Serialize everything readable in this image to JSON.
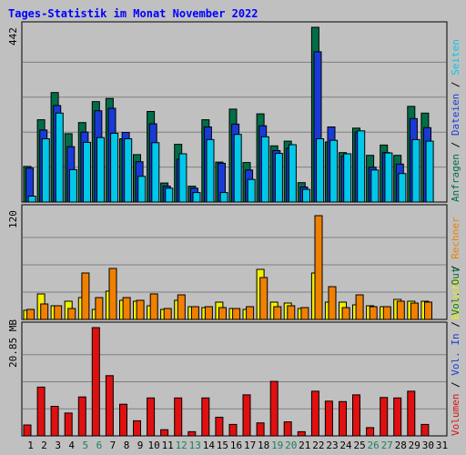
{
  "chart_data": [
    {
      "type": "bar",
      "title": "Tages-Statistik im Monat November 2022",
      "panel": "hits",
      "ylabel_max": "442",
      "ymax": 442,
      "legend": [
        {
          "label": "Anfragen",
          "color": "#006e46"
        },
        {
          "label": "Dateien",
          "color": "#1a3ad8"
        },
        {
          "label": "Seiten",
          "color": "#00c8e8"
        }
      ],
      "series": [
        {
          "name": "Anfragen",
          "values": [
            90,
            208,
            277,
            173,
            201,
            254,
            262,
            160,
            120,
            229,
            48,
            146,
            40,
            208,
            101,
            235,
            100,
            223,
            142,
            154,
            49,
            442,
            152,
            125,
            187,
            118,
            144,
            118,
            242,
            225
          ]
        },
        {
          "name": "Dateien",
          "values": [
            86,
            182,
            244,
            140,
            177,
            231,
            237,
            176,
            102,
            198,
            40,
            108,
            35,
            190,
            98,
            197,
            81,
            193,
            130,
            136,
            38,
            380,
            190,
            116,
            177,
            88,
            125,
            96,
            211,
            188
          ]
        },
        {
          "name": "Seiten",
          "values": [
            15,
            160,
            225,
            82,
            151,
            163,
            174,
            160,
            65,
            150,
            35,
            122,
            24,
            158,
            24,
            171,
            57,
            165,
            123,
            145,
            32,
            160,
            156,
            122,
            180,
            81,
            124,
            72,
            158,
            154
          ]
        }
      ]
    },
    {
      "type": "bar",
      "panel": "visits",
      "ylabel_max": "120",
      "ymax": 120,
      "legend": [
        {
          "label": "Besuche",
          "color": "#f0f000"
        },
        {
          "label": "Rechner",
          "color": "#f08000"
        }
      ],
      "series": [
        {
          "name": "Besuche",
          "values": [
            10,
            28,
            15,
            20,
            24,
            11,
            31,
            21,
            20,
            15,
            11,
            21,
            14,
            13,
            19,
            12,
            11,
            55,
            19,
            18,
            12,
            51,
            19,
            19,
            16,
            15,
            14,
            22,
            20,
            20
          ]
        },
        {
          "name": "Rechner",
          "values": [
            11,
            17,
            15,
            12,
            51,
            24,
            56,
            24,
            21,
            28,
            12,
            27,
            14,
            14,
            13,
            12,
            14,
            46,
            14,
            15,
            13,
            114,
            36,
            13,
            27,
            14,
            14,
            20,
            18,
            19
          ]
        }
      ]
    },
    {
      "type": "bar",
      "panel": "volume",
      "ylabel_max": "20.85 MB",
      "ymax": 20.85,
      "legend": [
        {
          "label": "Volumen",
          "color": "#e01010"
        },
        {
          "label": "Vol. In",
          "color": "#1a3ad8"
        },
        {
          "label": "Vol. Out",
          "color": "#006e46"
        }
      ],
      "series": [
        {
          "name": "Volumen",
          "values": [
            2.1,
            9.4,
            5.7,
            4.4,
            7.5,
            20.85,
            11.6,
            6.1,
            2.9,
            7.3,
            1.2,
            7.3,
            0.8,
            7.3,
            3.6,
            2.2,
            7.9,
            2.5,
            10.5,
            2.7,
            0.8,
            8.6,
            6.7,
            6.6,
            7.9,
            1.6,
            7.4,
            7.3,
            8.6,
            2.2
          ]
        }
      ]
    }
  ],
  "x_labels": [
    "1",
    "2",
    "3",
    "4",
    "5",
    "6",
    "7",
    "8",
    "9",
    "10",
    "11",
    "12",
    "13",
    "14",
    "15",
    "16",
    "17",
    "18",
    "19",
    "20",
    "21",
    "22",
    "23",
    "24",
    "25",
    "26",
    "27",
    "28",
    "29",
    "30",
    "31"
  ],
  "weekend_days": [
    5,
    6,
    12,
    13,
    19,
    20,
    26,
    27
  ],
  "colors": {
    "title": "#0000ff",
    "bg": "#c0c0c0",
    "weekend_label": "#1a8060",
    "weekday_label": "#000000",
    "grid": "#808080"
  }
}
